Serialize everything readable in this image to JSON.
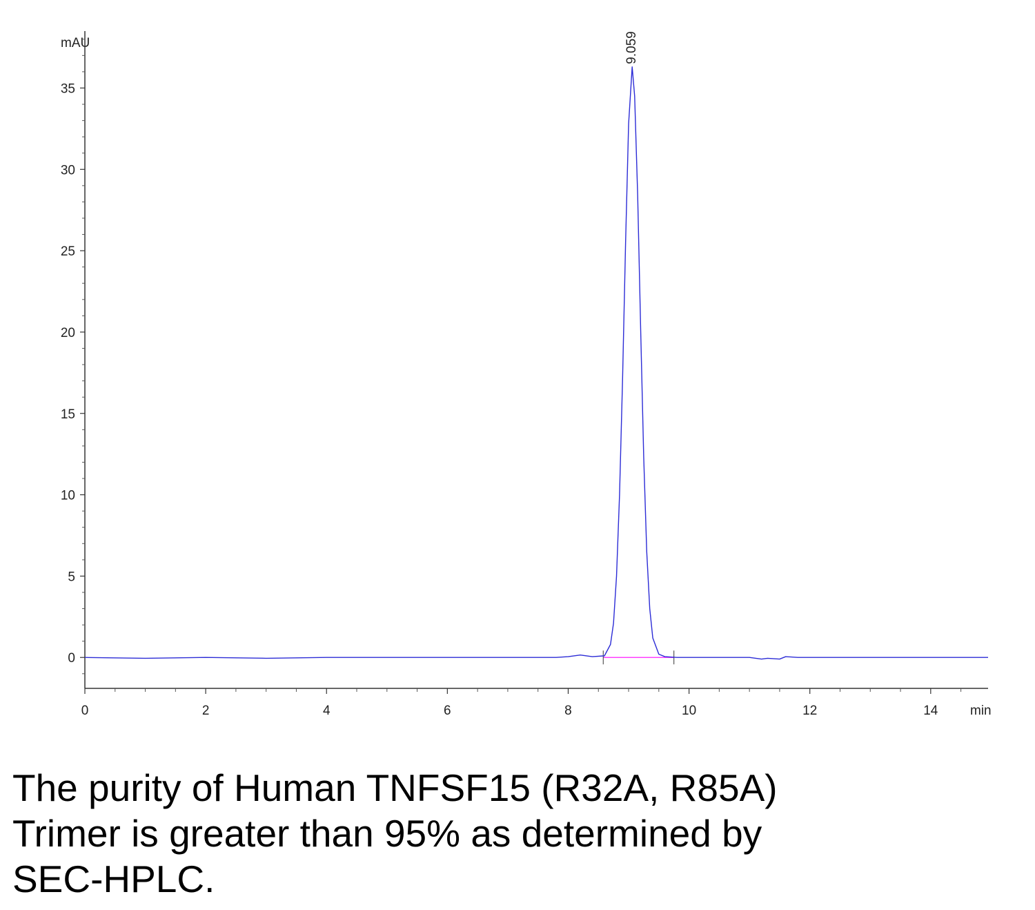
{
  "chart_data": {
    "type": "line",
    "y_axis_label": "mAU",
    "x_axis_label": "min",
    "color": "#2b2bd6",
    "x": [
      0,
      1,
      2,
      3,
      4,
      5,
      6,
      7,
      7.8,
      8.0,
      8.2,
      8.4,
      8.6,
      8.7,
      8.75,
      8.8,
      8.85,
      8.9,
      8.95,
      9.0,
      9.059,
      9.1,
      9.15,
      9.2,
      9.25,
      9.3,
      9.35,
      9.4,
      9.5,
      9.6,
      9.8,
      10,
      11,
      11.2,
      11.3,
      11.5,
      11.6,
      11.8,
      12,
      13,
      14,
      14.95
    ],
    "values": [
      0,
      -0.05,
      0,
      -0.05,
      0,
      0,
      0,
      0,
      0,
      0.05,
      0.15,
      0.05,
      0.1,
      0.8,
      2.1,
      5.0,
      10.0,
      17.1,
      25.5,
      32.8,
      36.3,
      34.5,
      28.4,
      20.1,
      12.3,
      6.5,
      3.0,
      1.2,
      0.2,
      0.05,
      0,
      0,
      0,
      -0.1,
      -0.05,
      -0.1,
      0.05,
      0,
      0,
      0,
      0,
      0
    ],
    "baseline": {
      "x": [
        8.58,
        9.75
      ],
      "values": [
        0,
        0
      ],
      "color": "#ff40ff"
    },
    "peak_labels": [
      {
        "x": 9.059,
        "y": 36.3,
        "label": "9.059"
      }
    ],
    "xlim": [
      0,
      14.95
    ],
    "ylim": [
      -1.9,
      38.5
    ],
    "xticks": [
      0,
      2,
      4,
      6,
      8,
      10,
      12,
      14
    ],
    "yticks": [
      0,
      5,
      10,
      15,
      20,
      25,
      30,
      35
    ],
    "xminorticks": [
      0.5,
      1,
      1.5,
      2.5,
      3,
      3.5,
      4.5,
      5,
      5.5,
      6.5,
      7,
      7.5,
      8.5,
      9,
      9.5,
      10.5,
      11,
      11.5,
      12.5,
      13,
      13.5,
      14.5
    ],
    "yminorticks": [
      -1,
      1,
      2,
      3,
      4,
      6,
      7,
      8,
      9,
      11,
      12,
      13,
      14,
      16,
      17,
      18,
      19,
      21,
      22,
      23,
      24,
      26,
      27,
      28,
      29,
      31,
      32,
      33,
      34,
      36,
      37,
      38
    ],
    "caption": [
      "The purity of Human TNFSF15 (R32A, R85A)",
      "Trimer is greater than 95% as determined by",
      "SEC-HPLC."
    ]
  }
}
